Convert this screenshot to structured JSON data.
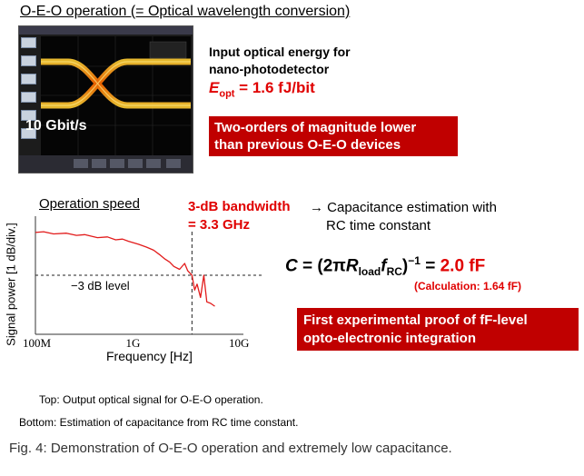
{
  "heading": "O-E-O operation (= Optical wavelength conversion)",
  "scope": {
    "bitrate": "10 Gbit/s"
  },
  "input_energy": {
    "title_line1": "Input optical energy for",
    "title_line2": "nano-photodetector",
    "symbol": "E",
    "subscript": "opt",
    "value": " = 1.6 fJ/bit"
  },
  "highlight_top": {
    "line1": "Two-orders of magnitude lower",
    "line2": "than previous O-E-O devices"
  },
  "operation_speed": "Operation speed",
  "bandwidth": {
    "line1": "3-dB bandwidth",
    "line2": "= 3.3 GHz"
  },
  "capacitance": {
    "line1": "→ Capacitance estimation with",
    "line2": "RC time constant"
  },
  "formula": {
    "c": "C",
    "eq_open": " = (2π",
    "r": "R",
    "r_sub": "load",
    "f": "f",
    "f_sub": "RC",
    "close": ")",
    "exp": "−1",
    "eq": "  = ",
    "value": "2.0 fF"
  },
  "calculation": "(Calculation: 1.64 fF)",
  "highlight_bottom": {
    "line1": "First experimental proof of fF-level",
    "line2": "opto-electronic integration"
  },
  "colors": {
    "accent_red": "#e00000",
    "box_red": "#c00000",
    "trace_red": "#e21b1b"
  },
  "chart_data": {
    "type": "line",
    "xlabel": "Frequency [Hz]",
    "ylabel": "Signal power [1 dB/div.]",
    "xscale": "log",
    "xlim": [
      100000000,
      10000000000
    ],
    "xticks": [
      "100M",
      "1G",
      "10G"
    ],
    "ylim": [
      -7,
      1
    ],
    "annotation_3db": "−3 dB level",
    "reference_level": -3,
    "bandwidth_marker_x": 3300000000,
    "series": [
      {
        "x": [
          100000000,
          120000000,
          150000000,
          200000000,
          250000000,
          300000000,
          400000000,
          500000000,
          600000000,
          700000000,
          800000000,
          1000000000,
          1200000000,
          1400000000,
          1600000000,
          1800000000,
          2000000000,
          2200000000,
          2500000000,
          2800000000,
          3000000000,
          3300000000,
          3500000000,
          3700000000,
          4000000000,
          4300000000,
          4600000000,
          5000000000,
          5500000000
        ],
        "y": [
          -0.1,
          -0.05,
          -0.2,
          -0.15,
          -0.3,
          -0.25,
          -0.45,
          -0.4,
          -0.6,
          -0.55,
          -0.7,
          -0.9,
          -1.1,
          -1.3,
          -1.6,
          -1.9,
          -2.1,
          -2.4,
          -2.6,
          -2.2,
          -2.7,
          -3.0,
          -4.0,
          -3.6,
          -4.5,
          -3.0,
          -4.8,
          -4.9,
          -5.1
        ]
      }
    ]
  },
  "caption_top": "Top: Output optical signal for O-E-O operation.",
  "caption_bottom": "Bottom: Estimation of capacitance from RC time constant.",
  "figure_caption": "Fig. 4: Demonstration of O-E-O operation and extremely low capacitance."
}
